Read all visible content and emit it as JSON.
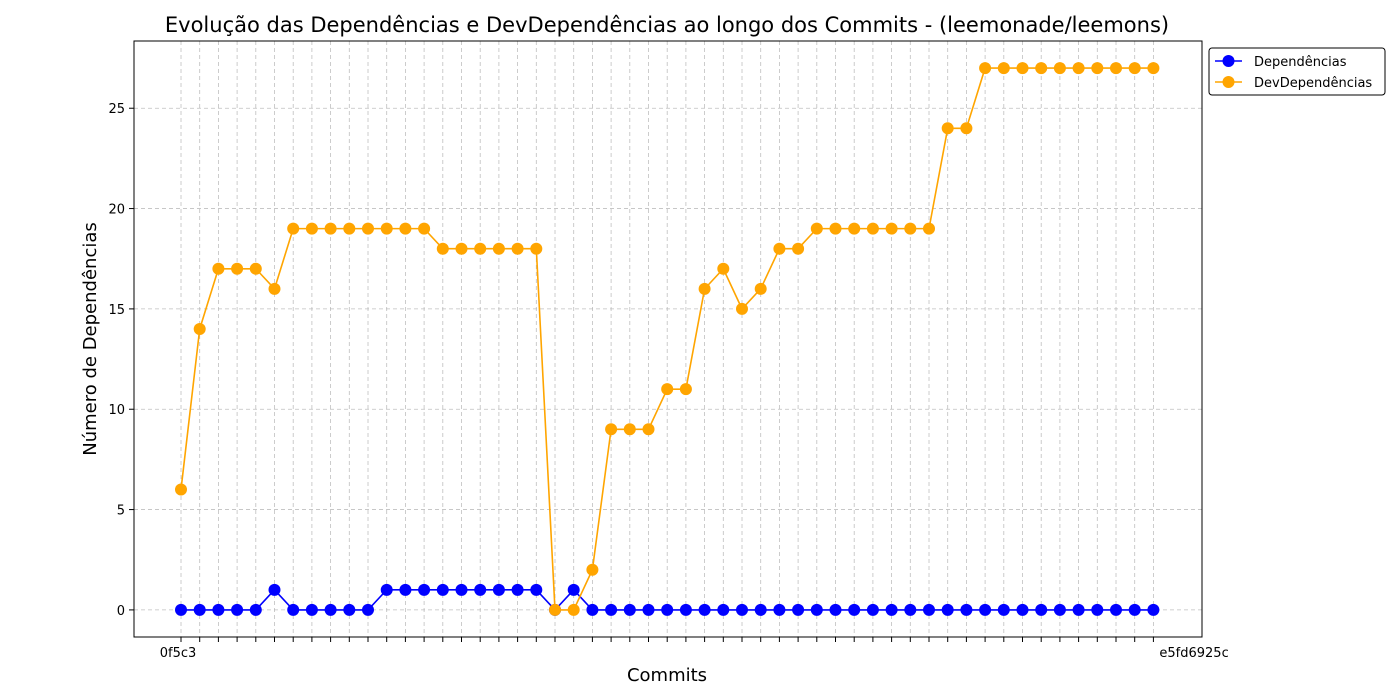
{
  "chart_data": {
    "type": "line",
    "title": "Evolução das Dependências e DevDependências ao longo dos Commits - (leemonade/leemons)",
    "xlabel": "Commits",
    "ylabel": "Número de Dependências",
    "ylim": [
      -1.35,
      28.35
    ],
    "yticks": [
      0,
      5,
      10,
      15,
      20,
      25
    ],
    "grid": true,
    "legend_position": "outside-top-right",
    "x_tick_first": "0f5c3",
    "x_tick_last": "e5fd6925c",
    "series": [
      {
        "name": "Dependências",
        "color": "#0000ff",
        "values": [
          0,
          0,
          0,
          0,
          0,
          1,
          0,
          0,
          0,
          0,
          0,
          1,
          1,
          1,
          1,
          1,
          1,
          1,
          1,
          1,
          0,
          1,
          0,
          0,
          0,
          0,
          0,
          0,
          0,
          0,
          0,
          0,
          0,
          0,
          0,
          0,
          0,
          0,
          0,
          0,
          0,
          0,
          0,
          0,
          0,
          0,
          0,
          0,
          0,
          0,
          0,
          0,
          0
        ]
      },
      {
        "name": "DevDependências",
        "color": "#ffa500",
        "values": [
          6,
          14,
          17,
          17,
          17,
          16,
          19,
          19,
          19,
          19,
          19,
          19,
          19,
          19,
          18,
          18,
          18,
          18,
          18,
          18,
          0,
          0,
          2,
          9,
          9,
          9,
          11,
          11,
          16,
          17,
          15,
          16,
          18,
          18,
          19,
          19,
          19,
          19,
          19,
          19,
          19,
          24,
          24,
          27,
          27,
          27,
          27,
          27,
          27,
          27,
          27,
          27,
          27
        ]
      }
    ]
  }
}
